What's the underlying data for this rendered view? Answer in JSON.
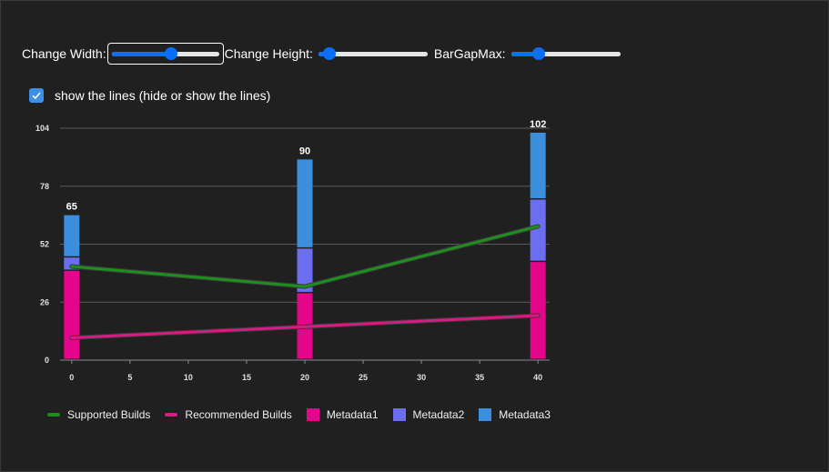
{
  "controls": {
    "width_label": "Change Width:",
    "height_label": "Change Height:",
    "gap_label": "BarGapMax:",
    "width_value": 0.55,
    "height_value": 0.1,
    "gap_value": 0.25
  },
  "toggle": {
    "label": "show the lines (hide or show the lines)",
    "checked": true
  },
  "colors": {
    "supported": "#1d8f1d",
    "recommended": "#d81b84",
    "metadata1": "#e3068a",
    "metadata2": "#6c6ef0",
    "metadata3": "#3b8fdc",
    "grid": "#5a5a5a"
  },
  "chart_data": {
    "type": "bar",
    "x": [
      0,
      20,
      40
    ],
    "xlim": [
      -1,
      41
    ],
    "ylim": [
      0,
      104
    ],
    "x_ticks": [
      0,
      5,
      10,
      15,
      20,
      25,
      30,
      35,
      40
    ],
    "y_ticks": [
      0,
      26,
      52,
      78,
      104
    ],
    "grid": true,
    "legend_position": "bottom",
    "stacked_series": [
      {
        "name": "Metadata1",
        "values": [
          40,
          30,
          44
        ]
      },
      {
        "name": "Metadata2",
        "values": [
          6,
          20,
          28
        ]
      },
      {
        "name": "Metadata3",
        "values": [
          19,
          40,
          30
        ]
      }
    ],
    "totals": [
      65,
      90,
      102
    ],
    "line_series": [
      {
        "name": "Supported Builds",
        "values": [
          42,
          33,
          60
        ]
      },
      {
        "name": "Recommended Builds",
        "values": [
          10,
          15,
          20
        ]
      }
    ]
  }
}
